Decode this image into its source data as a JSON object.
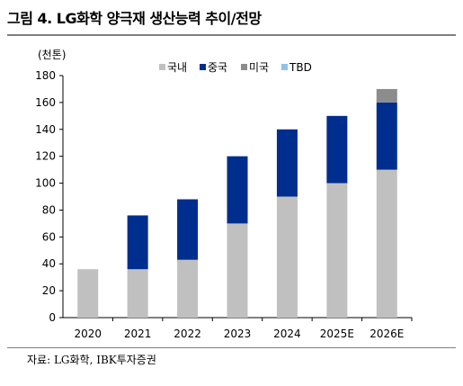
{
  "header": {
    "title": "그림 4. LG화학 양극재 생산능력 추이/전망"
  },
  "footer": {
    "source": "자료: LG화학, IBK투자증권"
  },
  "chart_data": {
    "type": "bar",
    "stacked": true,
    "title": "",
    "ylabel": "(천톤)",
    "xlabel": "",
    "ylim": [
      0,
      180
    ],
    "ytick_step": 20,
    "grid": false,
    "legend_position": "top",
    "categories": [
      "2020",
      "2021",
      "2022",
      "2023",
      "2024",
      "2025E",
      "2026E"
    ],
    "series": [
      {
        "name": "국내",
        "color": "#c0c0c0",
        "values": [
          36,
          36,
          43,
          70,
          90,
          100,
          110
        ]
      },
      {
        "name": "중국",
        "color": "#002e8e",
        "values": [
          0,
          40,
          45,
          50,
          50,
          50,
          50
        ]
      },
      {
        "name": "미국",
        "color": "#8c8c8c",
        "values": [
          0,
          0,
          0,
          0,
          0,
          0,
          10
        ]
      },
      {
        "name": "TBD",
        "color": "#8ec4e8",
        "values": [
          0,
          0,
          0,
          0,
          0,
          0,
          0
        ]
      }
    ]
  }
}
